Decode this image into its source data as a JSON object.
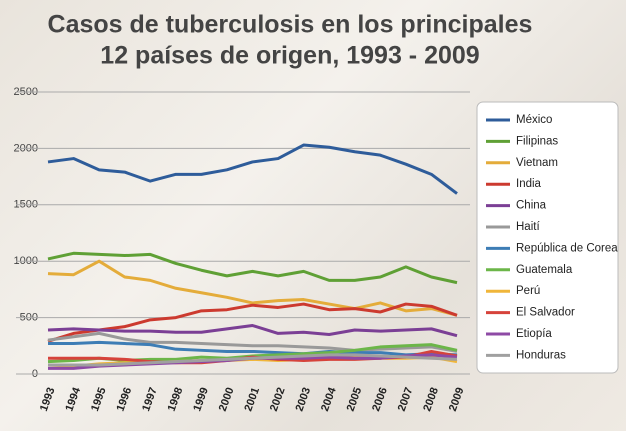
{
  "chart_data": {
    "type": "line",
    "title": [
      "Casos de tuberculosis en los principales",
      "12 países de origen, 1993 - 2009"
    ],
    "categories": [
      "1993",
      "1994",
      "1995",
      "1996",
      "1997",
      "1998",
      "1999",
      "2000",
      "2001",
      "2002",
      "2003",
      "2004",
      "2005",
      "2006",
      "2007",
      "2008",
      "2009"
    ],
    "ylim": [
      0,
      2500
    ],
    "yticks": [
      0,
      500,
      1000,
      1500,
      2000,
      2500
    ],
    "grid": true,
    "legend": "right",
    "series": [
      {
        "name": "México",
        "color": "#2e5c9a",
        "values": [
          1880,
          1910,
          1810,
          1790,
          1710,
          1770,
          1770,
          1810,
          1880,
          1910,
          2030,
          2010,
          1970,
          1940,
          1860,
          1770,
          1600
        ]
      },
      {
        "name": "Filipinas",
        "color": "#5fa035",
        "values": [
          1020,
          1070,
          1060,
          1050,
          1060,
          980,
          920,
          870,
          910,
          870,
          910,
          830,
          830,
          860,
          950,
          860,
          810
        ]
      },
      {
        "name": "Vietnam",
        "color": "#e4ac3a",
        "values": [
          890,
          880,
          1000,
          860,
          830,
          760,
          720,
          680,
          630,
          650,
          660,
          620,
          580,
          630,
          560,
          580,
          520
        ]
      },
      {
        "name": "India",
        "color": "#cc3a2f",
        "values": [
          290,
          360,
          390,
          420,
          480,
          500,
          560,
          570,
          610,
          590,
          620,
          570,
          580,
          550,
          620,
          600,
          520
        ]
      },
      {
        "name": "China",
        "color": "#7b3f95",
        "values": [
          390,
          400,
          390,
          380,
          380,
          370,
          370,
          400,
          430,
          360,
          370,
          350,
          390,
          380,
          390,
          400,
          340
        ]
      },
      {
        "name": "Haití",
        "color": "#999999",
        "values": [
          300,
          330,
          360,
          310,
          280,
          280,
          270,
          260,
          250,
          250,
          240,
          230,
          210,
          220,
          230,
          240,
          200
        ]
      },
      {
        "name": "República de Corea",
        "color": "#3d7db5",
        "values": [
          270,
          270,
          280,
          270,
          260,
          220,
          210,
          200,
          200,
          190,
          180,
          200,
          190,
          190,
          170,
          180,
          170
        ]
      },
      {
        "name": "Guatemala",
        "color": "#6cb649",
        "values": [
          110,
          120,
          140,
          120,
          130,
          130,
          150,
          140,
          160,
          170,
          180,
          190,
          210,
          240,
          250,
          260,
          210
        ]
      },
      {
        "name": "Perú",
        "color": "#f0b63a",
        "values": [
          80,
          70,
          90,
          100,
          100,
          110,
          120,
          120,
          130,
          120,
          130,
          140,
          150,
          140,
          140,
          150,
          110
        ]
      },
      {
        "name": "El Salvador",
        "color": "#d6433b",
        "values": [
          140,
          140,
          140,
          130,
          110,
          100,
          100,
          120,
          150,
          130,
          120,
          130,
          130,
          140,
          150,
          200,
          160
        ]
      },
      {
        "name": "Etiopía",
        "color": "#8e4aa5",
        "values": [
          50,
          50,
          70,
          80,
          90,
          100,
          110,
          120,
          140,
          140,
          140,
          150,
          140,
          140,
          160,
          170,
          150
        ]
      },
      {
        "name": "Honduras",
        "color": "#a0a0a0",
        "values": [
          80,
          80,
          80,
          90,
          100,
          110,
          120,
          130,
          140,
          150,
          160,
          170,
          170,
          160,
          150,
          140,
          130
        ]
      }
    ]
  }
}
